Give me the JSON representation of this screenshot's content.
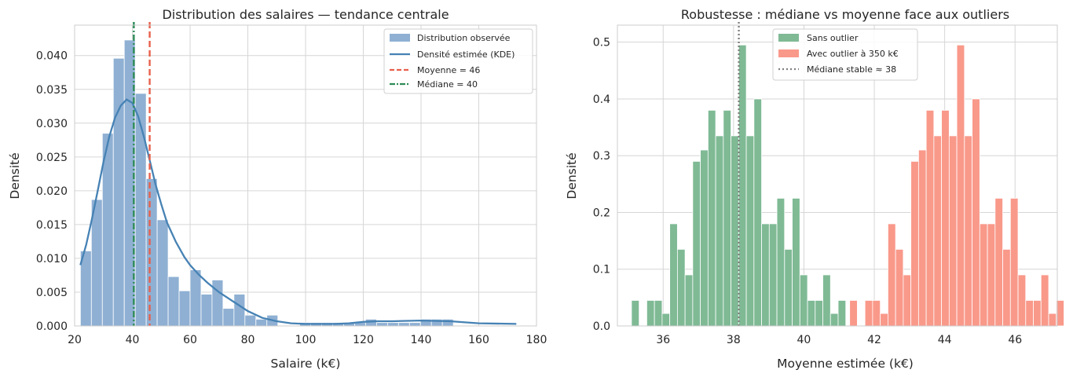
{
  "chart_data": [
    {
      "type": "bar",
      "title": "Distribution des salaires — tendance centrale",
      "xlabel": "Salaire (k€)",
      "ylabel": "Densité",
      "xlim": [
        20,
        180
      ],
      "ylim": [
        0,
        0.0445
      ],
      "xticks": [
        20,
        40,
        60,
        80,
        100,
        120,
        140,
        160,
        180
      ],
      "yticks": [
        "0.000",
        "0.005",
        "0.010",
        "0.015",
        "0.020",
        "0.025",
        "0.030",
        "0.035",
        "0.040"
      ],
      "grid": true,
      "legend_position": "top-right",
      "histogram": {
        "name": "Distribution observée",
        "color": "#8fb0d3",
        "bins": [
          {
            "x0": 22.0,
            "x1": 25.8,
            "v": 0.0111
          },
          {
            "x0": 25.8,
            "x1": 29.6,
            "v": 0.0187
          },
          {
            "x0": 29.6,
            "x1": 33.4,
            "v": 0.0285
          },
          {
            "x0": 33.4,
            "x1": 37.2,
            "v": 0.0396
          },
          {
            "x0": 37.2,
            "x1": 41.0,
            "v": 0.0423
          },
          {
            "x0": 41.0,
            "x1": 44.8,
            "v": 0.0344
          },
          {
            "x0": 44.8,
            "x1": 48.6,
            "v": 0.0218
          },
          {
            "x0": 48.6,
            "x1": 52.4,
            "v": 0.0157
          },
          {
            "x0": 52.4,
            "x1": 56.2,
            "v": 0.0073
          },
          {
            "x0": 56.2,
            "x1": 60.0,
            "v": 0.0052
          },
          {
            "x0": 60.0,
            "x1": 63.8,
            "v": 0.0083
          },
          {
            "x0": 63.8,
            "x1": 67.6,
            "v": 0.0047
          },
          {
            "x0": 67.6,
            "x1": 71.4,
            "v": 0.0068
          },
          {
            "x0": 71.4,
            "x1": 75.2,
            "v": 0.0026
          },
          {
            "x0": 75.2,
            "x1": 79.0,
            "v": 0.0047
          },
          {
            "x0": 79.0,
            "x1": 82.8,
            "v": 0.0016
          },
          {
            "x0": 82.8,
            "x1": 86.6,
            "v": 0.001
          },
          {
            "x0": 86.6,
            "x1": 90.4,
            "v": 0.0016
          },
          {
            "x0": 90.4,
            "x1": 94.2,
            "v": 0.0
          },
          {
            "x0": 94.2,
            "x1": 98.0,
            "v": 0.0
          },
          {
            "x0": 98.0,
            "x1": 101.8,
            "v": 0.0005
          },
          {
            "x0": 101.8,
            "x1": 105.6,
            "v": 0.0005
          },
          {
            "x0": 105.6,
            "x1": 109.4,
            "v": 0.0005
          },
          {
            "x0": 109.4,
            "x1": 113.2,
            "v": 0.0005
          },
          {
            "x0": 113.2,
            "x1": 117.0,
            "v": 0.0005
          },
          {
            "x0": 117.0,
            "x1": 120.8,
            "v": 0.0005
          },
          {
            "x0": 120.8,
            "x1": 124.6,
            "v": 0.001
          },
          {
            "x0": 124.6,
            "x1": 128.4,
            "v": 0.0005
          },
          {
            "x0": 128.4,
            "x1": 132.2,
            "v": 0.0005
          },
          {
            "x0": 132.2,
            "x1": 136.0,
            "v": 0.0005
          },
          {
            "x0": 136.0,
            "x1": 139.8,
            "v": 0.0005
          },
          {
            "x0": 139.8,
            "x1": 143.6,
            "v": 0.001
          },
          {
            "x0": 143.6,
            "x1": 147.4,
            "v": 0.001
          },
          {
            "x0": 147.4,
            "x1": 151.2,
            "v": 0.001
          }
        ]
      },
      "kde": {
        "name": "Densité estimée (KDE)",
        "color": "#4682b4",
        "x": [
          22,
          24,
          26,
          28,
          30,
          32,
          34,
          36,
          38,
          40,
          42,
          44,
          46,
          48,
          50,
          52,
          55,
          58,
          60,
          63,
          66,
          70,
          75,
          80,
          85,
          90,
          95,
          100,
          110,
          115,
          120,
          125,
          130,
          140,
          150,
          160,
          173
        ],
        "y": [
          0.009,
          0.012,
          0.0158,
          0.02,
          0.0243,
          0.028,
          0.0308,
          0.0326,
          0.0335,
          0.033,
          0.031,
          0.028,
          0.0245,
          0.021,
          0.018,
          0.0153,
          0.0125,
          0.0102,
          0.009,
          0.0076,
          0.0064,
          0.005,
          0.0036,
          0.0022,
          0.0012,
          0.0007,
          0.0004,
          0.0003,
          0.0003,
          0.0004,
          0.0006,
          0.0007,
          0.0007,
          0.0008,
          0.0007,
          0.0004,
          0.0003
        ]
      },
      "vlines": [
        {
          "name": "Moyenne = 46",
          "x": 46,
          "color": "#e8604c",
          "style": "dashed"
        },
        {
          "name": "Médiane = 40",
          "x": 40.5,
          "color": "#2e8b57",
          "style": "dashdot"
        }
      ]
    },
    {
      "type": "bar",
      "title": "Robustesse : médiane vs moyenne face aux outliers",
      "xlabel": "Moyenne estimée (k€)",
      "ylabel": "Densité",
      "xlim": [
        34.7,
        47.2
      ],
      "ylim": [
        0,
        0.53
      ],
      "xticks": [
        36,
        38,
        40,
        42,
        44,
        46
      ],
      "yticks": [
        "0.0",
        "0.1",
        "0.2",
        "0.3",
        "0.4",
        "0.5"
      ],
      "grid": true,
      "legend_position": "top-center",
      "series": [
        {
          "name": "Sans outlier",
          "color": "#7fba95",
          "x0": 35.1,
          "bin_width": 0.2175,
          "values": [
            0.045,
            0.0,
            0.045,
            0.045,
            0.022,
            0.18,
            0.135,
            0.09,
            0.29,
            0.31,
            0.38,
            0.335,
            0.38,
            0.335,
            0.495,
            0.335,
            0.4,
            0.18,
            0.18,
            0.225,
            0.135,
            0.225,
            0.09,
            0.045,
            0.045,
            0.09,
            0.022,
            0.045
          ]
        },
        {
          "name": "Avec outlier à 350 k€",
          "color": "#f9998a",
          "x0": 41.3,
          "bin_width": 0.2175,
          "values": [
            0.045,
            0.0,
            0.045,
            0.045,
            0.022,
            0.18,
            0.135,
            0.09,
            0.29,
            0.31,
            0.38,
            0.335,
            0.38,
            0.335,
            0.495,
            0.335,
            0.4,
            0.18,
            0.18,
            0.225,
            0.135,
            0.225,
            0.09,
            0.045,
            0.045,
            0.09,
            0.022,
            0.045
          ]
        }
      ],
      "vlines": [
        {
          "name": "Médiane stable ≈ 38",
          "x": 38.15,
          "color": "#808080",
          "style": "dotted"
        }
      ]
    }
  ]
}
